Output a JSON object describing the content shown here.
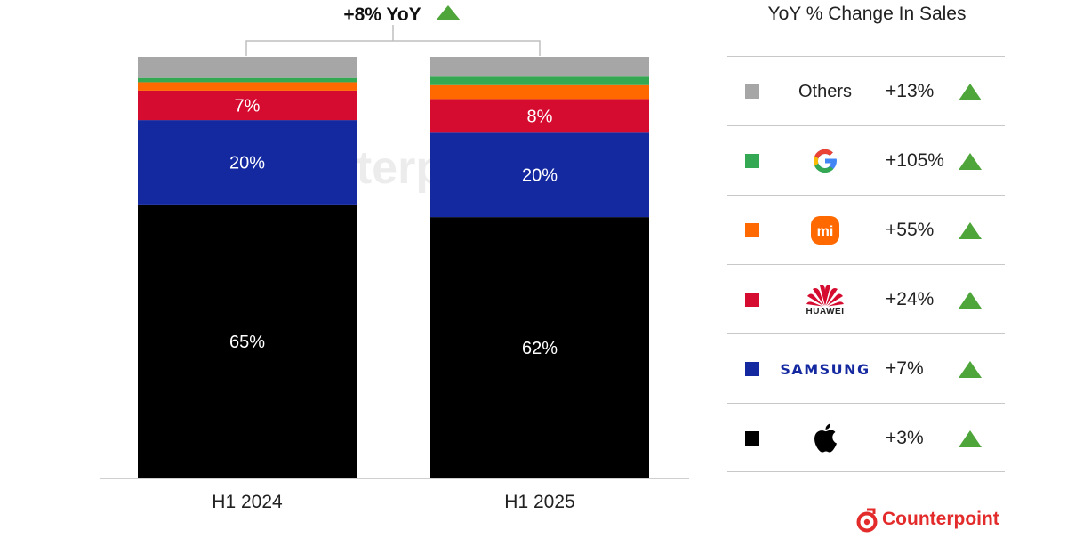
{
  "chart_data": {
    "type": "bar",
    "stacked": true,
    "normalized": true,
    "categories": [
      "H1 2024",
      "H1 2025"
    ],
    "series": [
      {
        "name": "Apple",
        "color": "#000000",
        "values": [
          65,
          62
        ],
        "labels": [
          "65%",
          "62%"
        ]
      },
      {
        "name": "Samsung",
        "color": "#1428a0",
        "values": [
          20,
          20
        ],
        "labels": [
          "20%",
          "20%"
        ]
      },
      {
        "name": "Huawei",
        "color": "#d50c2f",
        "values": [
          7,
          8
        ],
        "labels": [
          "7%",
          "8%"
        ]
      },
      {
        "name": "Xiaomi",
        "color": "#ff6900",
        "values": [
          2,
          3.3
        ],
        "labels": [
          "",
          ""
        ]
      },
      {
        "name": "Google",
        "color": "#34a853",
        "values": [
          1,
          2
        ],
        "labels": [
          "",
          ""
        ]
      },
      {
        "name": "Others",
        "color": "#a6a6a6",
        "values": [
          5,
          4.7
        ],
        "labels": [
          "",
          ""
        ]
      }
    ],
    "ylim": [
      0,
      100
    ],
    "annotation": {
      "text": "+8% YoY",
      "arrow": "up",
      "arrow_color": "#4ea63a"
    }
  },
  "legend": {
    "header": "YoY % Change In Sales",
    "rows": [
      {
        "brand": "Others",
        "brand_text": "Others",
        "color": "#a6a6a6",
        "change": "+13%",
        "icon": "text"
      },
      {
        "brand": "Google",
        "color": "#34a853",
        "change": "+105%",
        "icon": "google-logo-icon"
      },
      {
        "brand": "Xiaomi",
        "color": "#ff6900",
        "change": "+55%",
        "icon": "xiaomi-logo-icon",
        "logo_text": "mi"
      },
      {
        "brand": "Huawei",
        "color": "#d50c2f",
        "change": "+24%",
        "icon": "huawei-logo-icon",
        "logo_text": "HUAWEI"
      },
      {
        "brand": "Samsung",
        "color": "#1428a0",
        "change": "+7%",
        "icon": "samsung-logo-icon",
        "logo_text": "SAMSUNG"
      },
      {
        "brand": "Apple",
        "color": "#000000",
        "change": "+3%",
        "icon": "apple-logo-icon"
      }
    ]
  },
  "footer": {
    "logo_text": "Counterpoint",
    "logo_icon": "counterpoint-logo-icon",
    "watermark": "Counterpoint"
  }
}
